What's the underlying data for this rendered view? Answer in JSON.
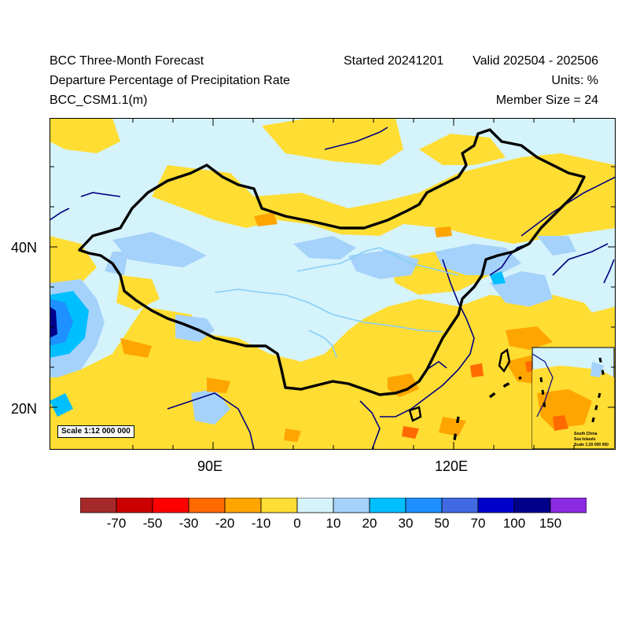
{
  "header": {
    "title": "BCC Three-Month Forecast",
    "subtitle": "Departure Percentage of Precipitation Rate",
    "model": "BCC_CSM1.1(m)",
    "started": "Started 20241201",
    "valid": "Valid 202504 - 202506",
    "units": "Units: %",
    "member_size": "Member Size = 24"
  },
  "axes": {
    "lat_labels": [
      "40N",
      "20N"
    ],
    "lon_labels": [
      "90E",
      "120E"
    ]
  },
  "map": {
    "scale_label": "Scale 1:12 000 000",
    "inset": {
      "title_line1": "South China",
      "title_line2": "Sea Islands",
      "scale": "Scale 1:20 000 000"
    }
  },
  "colorbar": {
    "labels": [
      "-70",
      "-50",
      "-30",
      "-20",
      "-10",
      "0",
      "10",
      "20",
      "30",
      "50",
      "70",
      "100",
      "150"
    ],
    "colors": [
      "#a52a2a",
      "#cc0000",
      "#ff0000",
      "#ff6a00",
      "#ffa500",
      "#ffdd33",
      "#d5f3fb",
      "#a5d2fa",
      "#00bfff",
      "#1e90ff",
      "#4169e1",
      "#0000cd",
      "#00008b",
      "#8a2be2"
    ]
  },
  "colors": {
    "neutral_pos": "#d5f3fb",
    "neutral_neg": "#ffdd33",
    "boundary": "#000000",
    "coast": "#00007f",
    "rivers": "#87cefa"
  }
}
